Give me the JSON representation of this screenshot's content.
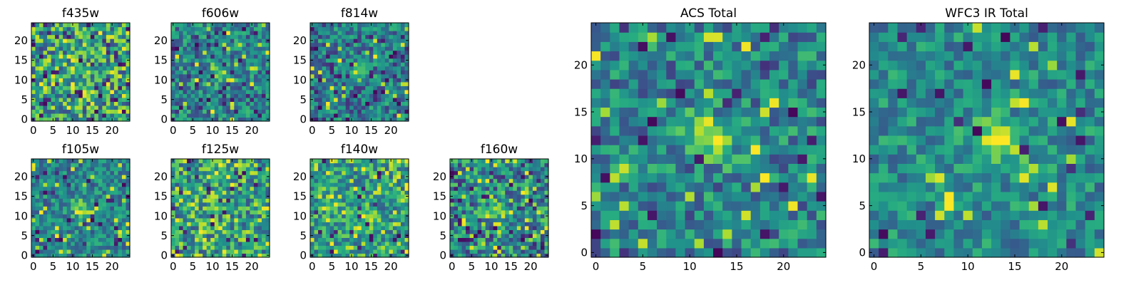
{
  "figure": {
    "description_none": ""
  },
  "colors": {
    "viridis_low": "#440154",
    "viridis_mid": "#21918c",
    "viridis_high": "#fde725",
    "frame": "#000000"
  },
  "chart_data": [
    {
      "type": "heatmap",
      "title": "f435w",
      "colormap": "viridis",
      "xlim": [
        0,
        25
      ],
      "ylim": [
        0,
        25
      ],
      "xticks": [
        "0",
        "5",
        "10",
        "15",
        "20"
      ],
      "yticks": [
        "0",
        "5",
        "10",
        "15",
        "20"
      ],
      "source_center": [
        11,
        13
      ],
      "source_strength": 0.15,
      "noise": 0.34,
      "base": 0.55,
      "seed": 11,
      "dark_rate": 0.08,
      "bright_rate": 0.12
    },
    {
      "type": "heatmap",
      "title": "f606w",
      "colormap": "viridis",
      "xlim": [
        0,
        25
      ],
      "ylim": [
        0,
        25
      ],
      "xticks": [
        "0",
        "5",
        "10",
        "15",
        "20"
      ],
      "yticks": [
        "0",
        "5",
        "10",
        "15",
        "20"
      ],
      "source_center": [
        12,
        12
      ],
      "source_strength": 0.35,
      "noise": 0.25,
      "base": 0.45,
      "seed": 23,
      "dark_rate": 0.07,
      "bright_rate": 0.04
    },
    {
      "type": "heatmap",
      "title": "f814w",
      "colormap": "viridis",
      "xlim": [
        0,
        25
      ],
      "ylim": [
        0,
        25
      ],
      "xticks": [
        "0",
        "5",
        "10",
        "15",
        "20"
      ],
      "yticks": [
        "0",
        "5",
        "10",
        "15",
        "20"
      ],
      "source_center": [
        12,
        12
      ],
      "source_strength": 0.4,
      "noise": 0.25,
      "base": 0.42,
      "seed": 37,
      "dark_rate": 0.07,
      "bright_rate": 0.04
    },
    {
      "type": "heatmap",
      "title": "f105w",
      "colormap": "viridis",
      "xlim": [
        0,
        25
      ],
      "ylim": [
        0,
        25
      ],
      "xticks": [
        "0",
        "5",
        "10",
        "15",
        "20"
      ],
      "yticks": [
        "0",
        "5",
        "10",
        "15",
        "20"
      ],
      "source_center": [
        12,
        12
      ],
      "source_strength": 0.4,
      "noise": 0.22,
      "base": 0.45,
      "seed": 41,
      "dark_rate": 0.04,
      "bright_rate": 0.05
    },
    {
      "type": "heatmap",
      "title": "f125w",
      "colormap": "viridis",
      "xlim": [
        0,
        25
      ],
      "ylim": [
        0,
        25
      ],
      "xticks": [
        "0",
        "5",
        "10",
        "15",
        "20"
      ],
      "yticks": [
        "0",
        "5",
        "10",
        "15",
        "20"
      ],
      "source_center": [
        12,
        14
      ],
      "source_strength": 0.2,
      "noise": 0.3,
      "base": 0.55,
      "seed": 53,
      "dark_rate": 0.05,
      "bright_rate": 0.12
    },
    {
      "type": "heatmap",
      "title": "f140w",
      "colormap": "viridis",
      "xlim": [
        0,
        25
      ],
      "ylim": [
        0,
        25
      ],
      "xticks": [
        "0",
        "5",
        "10",
        "15",
        "20"
      ],
      "yticks": [
        "0",
        "5",
        "10",
        "15",
        "20"
      ],
      "source_center": [
        14,
        10
      ],
      "source_strength": 0.3,
      "noise": 0.26,
      "base": 0.55,
      "seed": 67,
      "dark_rate": 0.04,
      "bright_rate": 0.1
    },
    {
      "type": "heatmap",
      "title": "f160w",
      "colormap": "viridis",
      "xlim": [
        0,
        25
      ],
      "ylim": [
        0,
        25
      ],
      "xticks": [
        "0",
        "5",
        "10",
        "15",
        "20"
      ],
      "yticks": [
        "0",
        "5",
        "10",
        "15",
        "20"
      ],
      "source_center": [
        12,
        12
      ],
      "source_strength": 0.35,
      "noise": 0.3,
      "base": 0.48,
      "seed": 79,
      "dark_rate": 0.06,
      "bright_rate": 0.08
    },
    {
      "type": "heatmap",
      "title": "ACS Total",
      "colormap": "viridis",
      "xlim": [
        0,
        25
      ],
      "ylim": [
        0,
        25
      ],
      "xticks": [
        "0",
        "5",
        "10",
        "15",
        "20"
      ],
      "yticks": [
        "0",
        "5",
        "10",
        "15",
        "20"
      ],
      "source_center": [
        12,
        12.5
      ],
      "source_strength": 0.45,
      "noise": 0.24,
      "base": 0.45,
      "seed": 97,
      "dark_rate": 0.05,
      "bright_rate": 0.04
    },
    {
      "type": "heatmap",
      "title": "WFC3 IR Total",
      "colormap": "viridis",
      "xlim": [
        0,
        25
      ],
      "ylim": [
        0,
        25
      ],
      "xticks": [
        "0",
        "5",
        "10",
        "15",
        "20"
      ],
      "yticks": [
        "0",
        "5",
        "10",
        "15",
        "20"
      ],
      "source_center": [
        13,
        12
      ],
      "source_strength": 0.45,
      "noise": 0.2,
      "base": 0.48,
      "seed": 113,
      "dark_rate": 0.04,
      "bright_rate": 0.03
    }
  ]
}
